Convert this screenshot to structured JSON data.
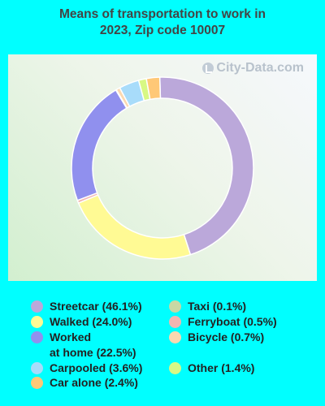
{
  "title": "Means of transportation to work in\n2023, Zip code 10007",
  "watermark": "City-Data.com",
  "chart_data": {
    "type": "pie",
    "title": "Means of transportation to work in 2023, Zip code 10007",
    "slices": [
      {
        "label": "Streetcar (46.1%)",
        "value": 46.1,
        "color": "#BBA8DA"
      },
      {
        "label": "Walked (24.0%)",
        "value": 24.0,
        "color": "#FFFA94"
      },
      {
        "label": "Ferryboat (0.5%)",
        "value": 0.5,
        "color": "#F2B6B1"
      },
      {
        "label": "Worked\nat home (22.5%)",
        "value": 22.5,
        "color": "#9090EE"
      },
      {
        "label": "Taxi (0.1%)",
        "value": 0.1,
        "color": "#C8D8A4"
      },
      {
        "label": "Bicycle (0.7%)",
        "value": 0.7,
        "color": "#FBD8B0"
      },
      {
        "label": "Carpooled (3.6%)",
        "value": 3.6,
        "color": "#A8DCFA"
      },
      {
        "label": "Other (1.4%)",
        "value": 1.4,
        "color": "#D8F884"
      },
      {
        "label": "Car alone (2.4%)",
        "value": 2.4,
        "color": "#FFC877"
      }
    ],
    "legend_order": [
      0,
      1,
      3,
      6,
      8,
      4,
      2,
      5,
      7
    ]
  }
}
